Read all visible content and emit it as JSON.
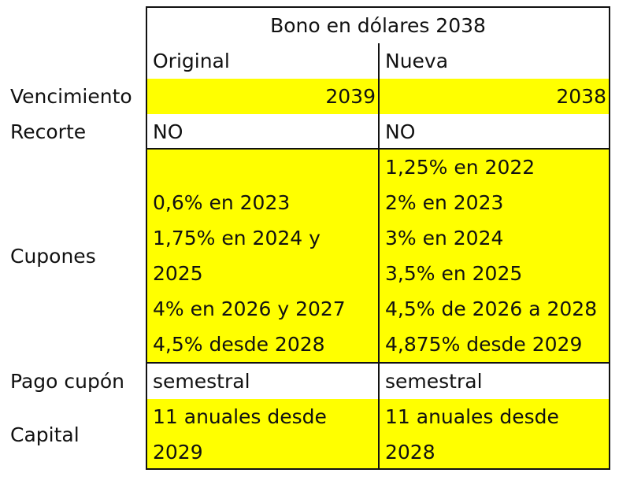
{
  "table": {
    "title": "Bono en dólares 2038",
    "columns": {
      "original": "Original",
      "nueva": "Nueva"
    },
    "rows": {
      "vencimiento": {
        "label": "Vencimiento",
        "original": "2039",
        "nueva": "2038"
      },
      "recorte": {
        "label": "Recorte",
        "original": "NO",
        "nueva": "NO"
      },
      "cupones": {
        "label": "Cupones",
        "original": [
          "0,6% en 2023",
          "1,75% en 2024 y",
          "2025",
          "4% en 2026 y 2027",
          "4,5% desde 2028"
        ],
        "nueva": [
          "1,25% en 2022",
          "2% en 2023",
          "3% en 2024",
          "3,5% en 2025",
          "4,5% de 2026 a 2028",
          "4,875% desde 2029"
        ]
      },
      "pago_cupon": {
        "label": "Pago cupón",
        "original": "semestral",
        "nueva": "semestral"
      },
      "capital": {
        "label": "Capital",
        "original": [
          "11 anuales desde",
          "2029"
        ],
        "nueva": [
          "11 anuales desde",
          "2028"
        ]
      }
    },
    "colors": {
      "highlight": "#ffff00",
      "border": "#111111",
      "text": "#111111",
      "background": "#ffffff"
    }
  }
}
